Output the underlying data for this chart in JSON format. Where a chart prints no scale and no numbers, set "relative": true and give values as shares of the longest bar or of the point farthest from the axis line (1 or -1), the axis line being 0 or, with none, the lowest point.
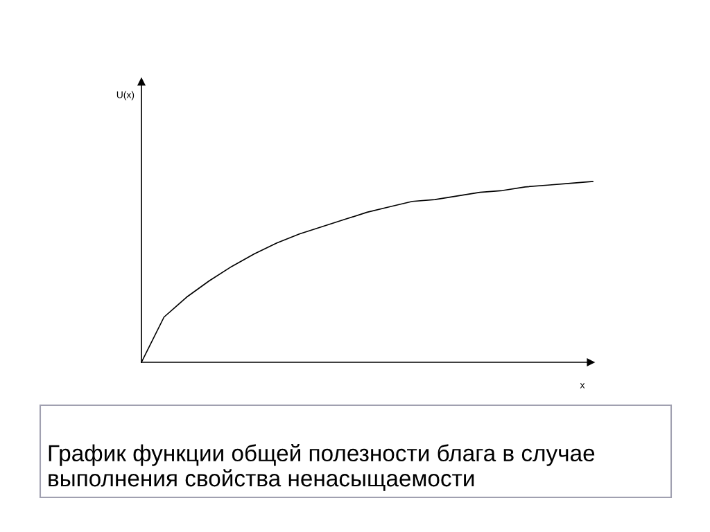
{
  "chart_data": {
    "type": "line",
    "relative": true,
    "xlabel": "x",
    "color": "#000000",
    "grid": false,
    "marker": "none",
    "line_style": "solid",
    "categories": [
      null,
      null,
      null,
      null,
      null,
      null,
      null,
      null,
      null,
      null,
      null,
      null,
      null,
      null,
      null,
      null,
      null,
      null,
      null,
      null,
      null
    ],
    "values": [
      0,
      0.25,
      0.36,
      0.45,
      0.53,
      0.6,
      0.66,
      0.71,
      0.75,
      0.79,
      0.83,
      0.86,
      0.89,
      0.9,
      0.92,
      0.94,
      0.95,
      0.97,
      0.98,
      0.99,
      1
    ],
    "annotations": [
      "U(x)",
      "График функции общей полезности блага в случае выполнения свойства ненасыщаемости"
    ]
  }
}
